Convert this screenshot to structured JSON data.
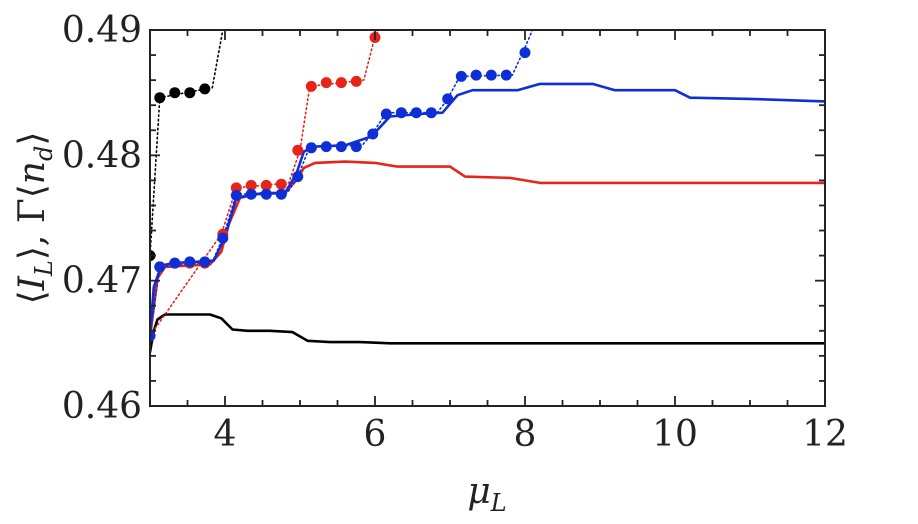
{
  "chart_data": {
    "type": "line",
    "title": "",
    "xlabel": "μL",
    "xlabel_main": "μ",
    "xlabel_sub": "L",
    "ylabel": "⟨IL⟩, Γ⟨nd⟩",
    "ylabel_parts": {
      "open1": "⟨",
      "I": "I",
      "sub1": "L",
      "close1": "⟩, Γ⟨",
      "n": "n",
      "sub2": "d",
      "close2": "⟩"
    },
    "xlim": [
      3,
      12
    ],
    "ylim": [
      0.46,
      0.49
    ],
    "xticks": [
      4,
      6,
      8,
      10,
      12
    ],
    "xtick_labels": [
      "4",
      "6",
      "8",
      "10",
      "12"
    ],
    "yticks": [
      0.46,
      0.47,
      0.48,
      0.49
    ],
    "ytick_labels": [
      "0.46",
      "0.47",
      "0.48",
      "0.49"
    ],
    "grid": false,
    "legend": "none",
    "series": [
      {
        "name": "black-line",
        "color": "#000000",
        "style": "solid",
        "x": [
          3.0,
          3.05,
          3.1,
          3.2,
          3.4,
          3.6,
          3.8,
          3.95,
          4.1,
          4.3,
          4.6,
          4.9,
          5.1,
          5.4,
          5.8,
          6.2,
          7.0,
          8.0,
          10.0,
          12.0
        ],
        "y": [
          0.4643,
          0.466,
          0.4669,
          0.4673,
          0.4673,
          0.4673,
          0.4673,
          0.467,
          0.4661,
          0.466,
          0.466,
          0.4659,
          0.4652,
          0.4651,
          0.4651,
          0.465,
          0.465,
          0.465,
          0.465,
          0.465
        ]
      },
      {
        "name": "red-line",
        "color": "#e8231a",
        "style": "solid",
        "x": [
          3.0,
          3.1,
          3.2,
          3.5,
          3.8,
          3.95,
          4.05,
          4.2,
          4.5,
          4.8,
          4.95,
          5.05,
          5.2,
          5.6,
          6.0,
          6.3,
          7.0,
          7.2,
          7.8,
          8.2,
          9.0,
          12.0
        ],
        "y": [
          0.4655,
          0.4702,
          0.4711,
          0.4712,
          0.4713,
          0.4723,
          0.4745,
          0.4766,
          0.477,
          0.477,
          0.478,
          0.479,
          0.4794,
          0.4795,
          0.4794,
          0.4791,
          0.4791,
          0.4783,
          0.4782,
          0.4778,
          0.4778,
          0.4778
        ]
      },
      {
        "name": "blue-line",
        "color": "#0f2fd6",
        "style": "solid",
        "x": [
          3.0,
          3.05,
          3.15,
          3.3,
          3.6,
          3.85,
          4.0,
          4.15,
          4.4,
          4.8,
          4.95,
          5.05,
          5.2,
          5.6,
          5.95,
          6.2,
          6.6,
          6.9,
          7.1,
          7.3,
          7.9,
          8.2,
          8.9,
          9.2,
          10.0,
          10.2,
          11.0,
          12.0
        ],
        "y": [
          0.4655,
          0.4695,
          0.4712,
          0.4714,
          0.4715,
          0.4716,
          0.4735,
          0.4766,
          0.4769,
          0.477,
          0.4785,
          0.4803,
          0.4807,
          0.4808,
          0.4815,
          0.4831,
          0.4833,
          0.4834,
          0.4848,
          0.4852,
          0.4852,
          0.4857,
          0.4857,
          0.4852,
          0.4852,
          0.4846,
          0.4845,
          0.4843
        ]
      },
      {
        "name": "black-dotted",
        "color": "#000000",
        "style": "dotted",
        "x": [
          3.0,
          3.13,
          3.83,
          3.97
        ],
        "y": [
          0.472,
          0.4846,
          0.4854,
          0.49
        ]
      },
      {
        "name": "red-dotted",
        "color": "#e8231a",
        "style": "dotted",
        "x": [
          3.0,
          3.95,
          4.15,
          4.85,
          5.0,
          5.13,
          5.85,
          6.0,
          6.05
        ],
        "y": [
          0.4656,
          0.4737,
          0.4774,
          0.4778,
          0.4804,
          0.4855,
          0.486,
          0.4895,
          0.49
        ]
      },
      {
        "name": "blue-dotted",
        "color": "#0f2fd6",
        "style": "dotted",
        "x": [
          3.0,
          3.13,
          3.83,
          3.97,
          4.15,
          4.83,
          4.97,
          5.13,
          5.83,
          5.97,
          6.15,
          6.83,
          6.97,
          7.13,
          7.83,
          7.97,
          8.1
        ],
        "y": [
          0.4656,
          0.4711,
          0.4715,
          0.4734,
          0.4769,
          0.477,
          0.4783,
          0.4807,
          0.4808,
          0.4818,
          0.4834,
          0.4834,
          0.4845,
          0.4863,
          0.4864,
          0.4882,
          0.49
        ]
      }
    ],
    "markers": [
      {
        "name": "black-markers",
        "color": "#000000",
        "x": [
          3.0,
          3.13,
          3.33,
          3.53,
          3.73
        ],
        "y": [
          0.472,
          0.4846,
          0.485,
          0.485,
          0.4853
        ]
      },
      {
        "name": "red-markers",
        "color": "#e8231a",
        "x": [
          3.0,
          3.13,
          3.33,
          3.53,
          3.73,
          3.97,
          4.15,
          4.35,
          4.55,
          4.75,
          4.97,
          5.15,
          5.35,
          5.55,
          5.75,
          6.0
        ],
        "y": [
          0.4656,
          0.4711,
          0.4714,
          0.4714,
          0.4714,
          0.4737,
          0.4774,
          0.4776,
          0.4776,
          0.4777,
          0.4804,
          0.4855,
          0.4858,
          0.4858,
          0.4859,
          0.4894
        ]
      },
      {
        "name": "blue-markers",
        "color": "#0f2fd6",
        "x": [
          3.0,
          3.13,
          3.33,
          3.53,
          3.73,
          3.97,
          4.15,
          4.35,
          4.55,
          4.75,
          4.97,
          5.15,
          5.35,
          5.55,
          5.75,
          5.97,
          6.15,
          6.35,
          6.55,
          6.75,
          6.97,
          7.15,
          7.35,
          7.55,
          7.75,
          8.0
        ],
        "y": [
          0.4656,
          0.4711,
          0.4714,
          0.4715,
          0.4715,
          0.4734,
          0.4768,
          0.4769,
          0.4769,
          0.4769,
          0.4783,
          0.4806,
          0.4807,
          0.4807,
          0.4807,
          0.4817,
          0.4833,
          0.4834,
          0.4834,
          0.4834,
          0.4845,
          0.4863,
          0.4864,
          0.4864,
          0.4864,
          0.4882
        ]
      }
    ]
  }
}
